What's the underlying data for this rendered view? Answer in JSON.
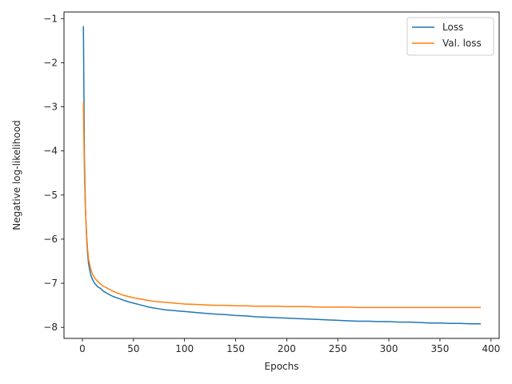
{
  "chart_data": {
    "type": "line",
    "title": "",
    "xlabel": "Epochs",
    "ylabel": "Negative log-likelihood",
    "xlim": [
      -18,
      408
    ],
    "ylim": [
      -8.25,
      -0.85
    ],
    "xticks": [
      0,
      50,
      100,
      150,
      200,
      250,
      300,
      350,
      400
    ],
    "yticks": [
      -1,
      -2,
      -3,
      -4,
      -5,
      -6,
      -7,
      -8
    ],
    "grid": false,
    "legend_position": "top-right",
    "series": [
      {
        "name": "Loss",
        "color": "#1f77b4",
        "points": [
          [
            1,
            -1.17
          ],
          [
            2,
            -4.2
          ],
          [
            3,
            -5.3
          ],
          [
            4,
            -5.9
          ],
          [
            5,
            -6.3
          ],
          [
            6,
            -6.55
          ],
          [
            8,
            -6.8
          ],
          [
            10,
            -6.92
          ],
          [
            12,
            -7.0
          ],
          [
            15,
            -7.08
          ],
          [
            18,
            -7.12
          ],
          [
            20,
            -7.17
          ],
          [
            25,
            -7.24
          ],
          [
            30,
            -7.3
          ],
          [
            35,
            -7.34
          ],
          [
            40,
            -7.38
          ],
          [
            45,
            -7.42
          ],
          [
            50,
            -7.45
          ],
          [
            55,
            -7.48
          ],
          [
            60,
            -7.51
          ],
          [
            65,
            -7.54
          ],
          [
            70,
            -7.56
          ],
          [
            75,
            -7.58
          ],
          [
            80,
            -7.6
          ],
          [
            85,
            -7.61
          ],
          [
            90,
            -7.62
          ],
          [
            95,
            -7.63
          ],
          [
            100,
            -7.64
          ],
          [
            110,
            -7.66
          ],
          [
            120,
            -7.68
          ],
          [
            130,
            -7.7
          ],
          [
            140,
            -7.71
          ],
          [
            150,
            -7.73
          ],
          [
            160,
            -7.74
          ],
          [
            170,
            -7.76
          ],
          [
            180,
            -7.77
          ],
          [
            190,
            -7.78
          ],
          [
            200,
            -7.79
          ],
          [
            210,
            -7.8
          ],
          [
            220,
            -7.81
          ],
          [
            230,
            -7.82
          ],
          [
            240,
            -7.83
          ],
          [
            250,
            -7.84
          ],
          [
            260,
            -7.85
          ],
          [
            270,
            -7.86
          ],
          [
            280,
            -7.86
          ],
          [
            290,
            -7.87
          ],
          [
            300,
            -7.87
          ],
          [
            310,
            -7.88
          ],
          [
            320,
            -7.88
          ],
          [
            330,
            -7.89
          ],
          [
            340,
            -7.9
          ],
          [
            350,
            -7.9
          ],
          [
            360,
            -7.91
          ],
          [
            370,
            -7.91
          ],
          [
            380,
            -7.92
          ],
          [
            390,
            -7.92
          ]
        ]
      },
      {
        "name": "Val. loss",
        "color": "#ff7f0e",
        "points": [
          [
            1,
            -2.9
          ],
          [
            2,
            -4.5
          ],
          [
            3,
            -5.35
          ],
          [
            4,
            -5.85
          ],
          [
            5,
            -6.2
          ],
          [
            6,
            -6.45
          ],
          [
            8,
            -6.67
          ],
          [
            10,
            -6.8
          ],
          [
            12,
            -6.88
          ],
          [
            15,
            -6.96
          ],
          [
            18,
            -7.02
          ],
          [
            20,
            -7.06
          ],
          [
            25,
            -7.12
          ],
          [
            30,
            -7.18
          ],
          [
            35,
            -7.23
          ],
          [
            40,
            -7.27
          ],
          [
            45,
            -7.3
          ],
          [
            50,
            -7.33
          ],
          [
            55,
            -7.35
          ],
          [
            60,
            -7.37
          ],
          [
            65,
            -7.39
          ],
          [
            70,
            -7.41
          ],
          [
            75,
            -7.42
          ],
          [
            80,
            -7.43
          ],
          [
            85,
            -7.44
          ],
          [
            90,
            -7.45
          ],
          [
            95,
            -7.46
          ],
          [
            100,
            -7.47
          ],
          [
            110,
            -7.48
          ],
          [
            120,
            -7.49
          ],
          [
            130,
            -7.5
          ],
          [
            140,
            -7.5
          ],
          [
            150,
            -7.51
          ],
          [
            160,
            -7.51
          ],
          [
            170,
            -7.52
          ],
          [
            180,
            -7.52
          ],
          [
            190,
            -7.52
          ],
          [
            200,
            -7.53
          ],
          [
            210,
            -7.53
          ],
          [
            220,
            -7.53
          ],
          [
            230,
            -7.54
          ],
          [
            240,
            -7.54
          ],
          [
            250,
            -7.54
          ],
          [
            260,
            -7.54
          ],
          [
            270,
            -7.55
          ],
          [
            280,
            -7.55
          ],
          [
            290,
            -7.55
          ],
          [
            300,
            -7.55
          ],
          [
            310,
            -7.55
          ],
          [
            320,
            -7.55
          ],
          [
            330,
            -7.55
          ],
          [
            340,
            -7.55
          ],
          [
            350,
            -7.55
          ],
          [
            360,
            -7.55
          ],
          [
            370,
            -7.55
          ],
          [
            380,
            -7.55
          ],
          [
            390,
            -7.55
          ]
        ]
      }
    ]
  }
}
